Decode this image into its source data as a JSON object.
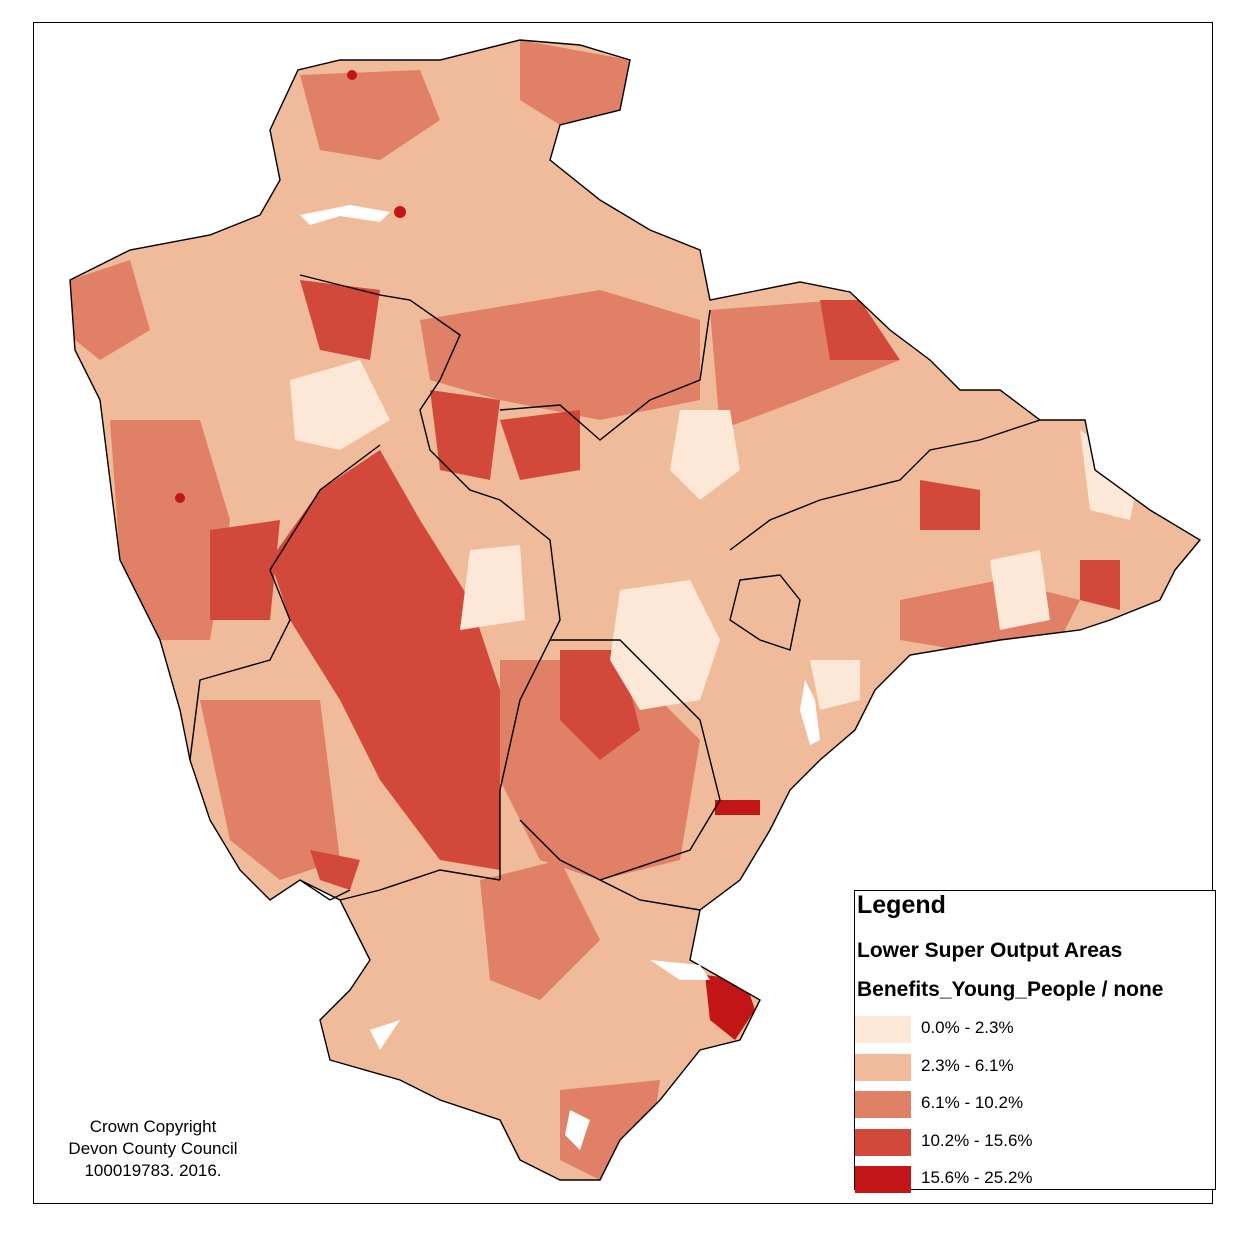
{
  "legend": {
    "title": "Legend",
    "layer": "Lower Super Output Areas",
    "field": "Benefits_Young_People / none",
    "classes": [
      {
        "label": "0.0% - 2.3%",
        "color": "#fde7d6"
      },
      {
        "label": "2.3% - 6.1%",
        "color": "#efbb9b"
      },
      {
        "label": "6.1% - 10.2%",
        "color": "#e08066"
      },
      {
        "label": "10.2% - 15.6%",
        "color": "#d2483a"
      },
      {
        "label": "15.6% - 25.2%",
        "color": "#c31515"
      }
    ]
  },
  "copyright": {
    "line1": "Crown Copyright",
    "line2": "Devon County Council",
    "line3": "100019783.  2016."
  },
  "colors": {
    "c0": "#fde7d6",
    "c1": "#efbb9b",
    "c2": "#e08066",
    "c3": "#d2483a",
    "c4": "#c31515",
    "boundary": "#000000",
    "water": "#ffffff"
  }
}
